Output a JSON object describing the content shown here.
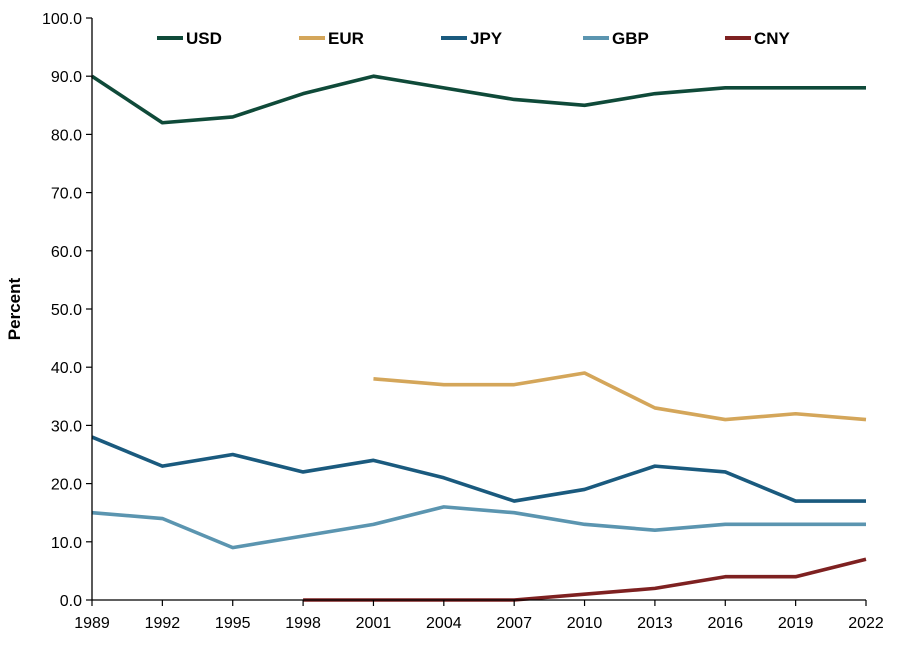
{
  "chart_data": {
    "type": "line",
    "title": "",
    "xlabel": "",
    "ylabel": "Percent",
    "ylim": [
      0,
      100
    ],
    "y_ticks": [
      "0.0",
      "10.0",
      "20.0",
      "30.0",
      "40.0",
      "50.0",
      "60.0",
      "70.0",
      "80.0",
      "90.0",
      "100.0"
    ],
    "x": [
      "1989",
      "1992",
      "1995",
      "1998",
      "2001",
      "2004",
      "2007",
      "2010",
      "2013",
      "2016",
      "2019",
      "2022"
    ],
    "grid": false,
    "legend": "top",
    "series": [
      {
        "name": "USD",
        "color": "#0f4a39",
        "values": [
          90,
          82,
          83,
          87,
          90,
          88,
          86,
          85,
          87,
          88,
          88,
          88
        ]
      },
      {
        "name": "EUR",
        "color": "#d4a65a",
        "values": [
          null,
          null,
          null,
          null,
          38,
          37,
          37,
          39,
          33,
          31,
          32,
          31
        ]
      },
      {
        "name": "JPY",
        "color": "#1a5a7e",
        "values": [
          28,
          23,
          25,
          22,
          24,
          21,
          17,
          19,
          23,
          22,
          17,
          17
        ]
      },
      {
        "name": "GBP",
        "color": "#5b95b0",
        "values": [
          15,
          14,
          9,
          11,
          13,
          16,
          15,
          13,
          12,
          13,
          13,
          13
        ]
      },
      {
        "name": "CNY",
        "color": "#7e2121",
        "values": [
          null,
          null,
          null,
          0,
          0,
          0,
          0,
          1,
          2,
          4,
          4,
          7
        ]
      }
    ]
  }
}
